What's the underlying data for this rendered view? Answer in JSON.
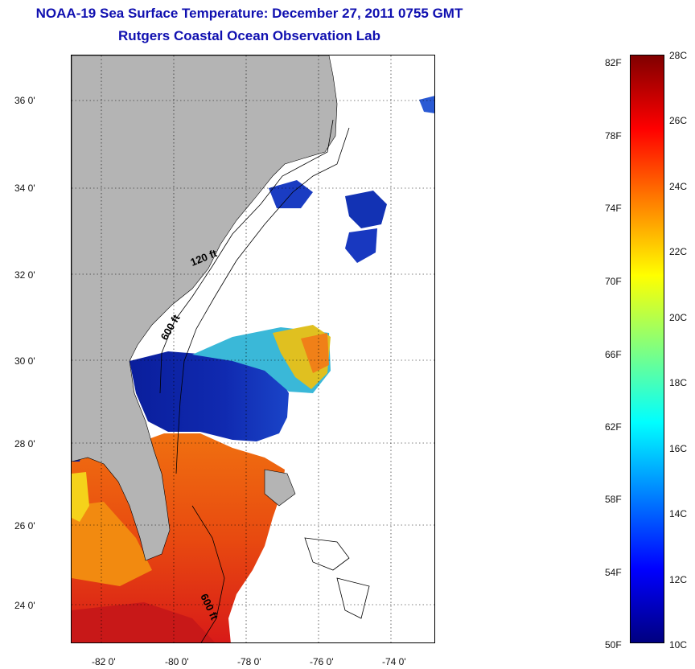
{
  "title": {
    "line1": "NOAA-19 Sea Surface Temperature:  December 27, 2011 0755 GMT",
    "line2": "Rutgers Coastal Ocean Observation Lab"
  },
  "map": {
    "lat_labels": [
      "36 0'",
      "34 0'",
      "32 0'",
      "30 0'",
      "28 0'",
      "26 0'",
      "24 0'"
    ],
    "lon_labels": [
      "-82 0'",
      "-80 0'",
      "-78 0'",
      "-76 0'",
      "-74 0'"
    ],
    "contour_labels": [
      "120 ft",
      "600 ft",
      "600 ft"
    ],
    "land_color": "#b4b4b4",
    "cloud_color": "#ffffff"
  },
  "colorbar": {
    "fahrenheit_labels": [
      "82F",
      "78F",
      "74F",
      "70F",
      "66F",
      "62F",
      "58F",
      "54F",
      "50F"
    ],
    "celsius_labels": [
      "28C",
      "26C",
      "24C",
      "22C",
      "20C",
      "18C",
      "16C",
      "14C",
      "12C",
      "10C"
    ],
    "range_c": [
      10,
      28
    ],
    "colormap": "jet"
  }
}
